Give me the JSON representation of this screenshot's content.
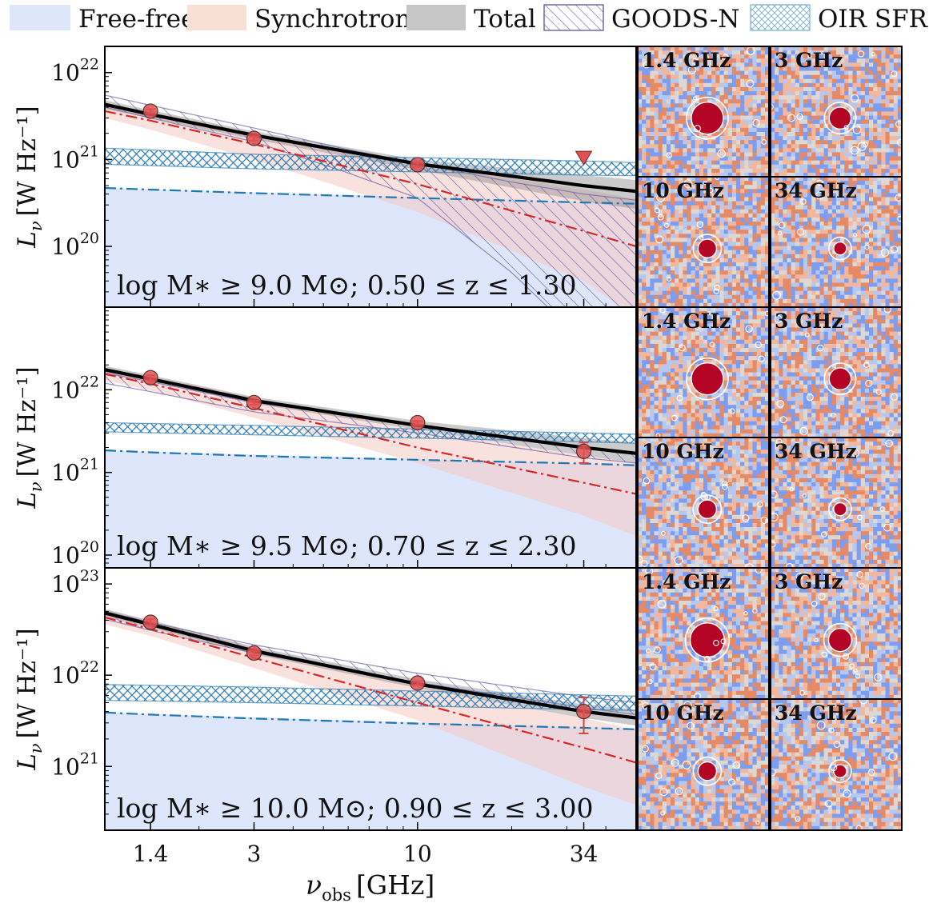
{
  "legend": {
    "items": [
      {
        "label": "Free-free",
        "style": "fill",
        "color": "#dde6fa"
      },
      {
        "label": "Synchrotron",
        "style": "fill",
        "color": "#f9e0d6"
      },
      {
        "label": "Total",
        "style": "fill",
        "color": "#c6c6c6"
      },
      {
        "label": "GOODS-N",
        "style": "hatch-diag",
        "color": "#6b5fa6"
      },
      {
        "label": "OIR SFR",
        "style": "hatch-cross",
        "color": "#8cb8d6"
      }
    ]
  },
  "colors": {
    "free_free_fill": "#dde6fa",
    "synchrotron_fill": "#f4c9c3",
    "total_fill": "#8c8c8c",
    "total_line": "#000000",
    "free_free_line": "#1f77b4",
    "synchrotron_line": "#d62728",
    "goods_n_hatch": "#6b5fa6",
    "oir_hatch": "#2f7fb6",
    "data_point": "#e05252",
    "map_low": "#4a6fe0",
    "map_mid": "#dcdcdc",
    "map_high": "#e2734a",
    "map_source": "#b40426"
  },
  "xaxis": {
    "label": "ν_obs [GHz]",
    "label_main": "ν",
    "label_sub": "obs",
    "label_unit": "[GHz]",
    "scale": "log",
    "xlim": [
      1.0,
      50.0
    ],
    "ticks": [
      1.4,
      3,
      10,
      34
    ],
    "tick_labels": [
      "1.4",
      "3",
      "10",
      "34"
    ]
  },
  "ylabel": "L_ν [W Hz⁻¹]",
  "ylabel_main": "L",
  "ylabel_sub": "ν",
  "ylabel_unit": "[W Hz⁻¹]",
  "chart_data": [
    {
      "type": "line",
      "panel": 1,
      "annotation": "log M∗ ≥ 9.0 M⊙;  0.50 ≤ z ≤ 1.30",
      "yscale": "log",
      "ylim": [
        2e+19,
        2e+22
      ],
      "ytick_labels": [
        "10^22",
        "10^21",
        "10^20"
      ],
      "yticks": [
        1e+22,
        1e+21,
        1e+20
      ],
      "grid": false,
      "series": [
        {
          "name": "Total",
          "style": "solid",
          "x": [
            1,
            1.4,
            3,
            10,
            34,
            50
          ],
          "y": [
            4.3e+21,
            3.3e+21,
            1.9e+21,
            8.9e+20,
            5e+20,
            4.3e+20
          ]
        },
        {
          "name": "Free-free",
          "style": "dashdot",
          "x": [
            1,
            1.4,
            3,
            10,
            34,
            50
          ],
          "y": [
            4.7e+20,
            4.5e+20,
            4.1e+20,
            3.6e+20,
            3.2e+20,
            3.1e+20
          ]
        },
        {
          "name": "Synchrotron",
          "style": "dashdot",
          "x": [
            1,
            1.4,
            3,
            10,
            34,
            50
          ],
          "y": [
            3.6e+21,
            2.8e+21,
            1.5e+21,
            5.2e+20,
            1.5e+20,
            1e+20
          ]
        }
      ],
      "bands": [
        {
          "name": "Free-free",
          "x": [
            1,
            50
          ],
          "ylow": [
            10000000000.0,
            10000000000.0
          ],
          "yhigh": [
            4.7e+20,
            3.1e+20
          ]
        },
        {
          "name": "Synchrotron",
          "x": [
            1,
            1.4,
            3,
            10,
            34,
            50
          ],
          "ylow": [
            3e+21,
            2.2e+21,
            1e+21,
            2.5e+20,
            4e+19,
            1.5e+19
          ],
          "yhigh": [
            4.5e+21,
            3.5e+21,
            2e+21,
            9e+20,
            4.5e+20,
            3.5e+20
          ]
        },
        {
          "name": "Total",
          "x": [
            1,
            1.4,
            3,
            10,
            34,
            50
          ],
          "ylow": [
            3.8e+21,
            3e+21,
            1.7e+21,
            7.6e+20,
            3.3e+20,
            2.7e+20
          ],
          "yhigh": [
            4.8e+21,
            3.7e+21,
            2.1e+21,
            1e+21,
            6.6e+20,
            5.8e+20
          ]
        }
      ],
      "hatched": [
        {
          "name": "GOODS-N",
          "x": [
            1,
            1.4,
            3,
            6,
            10,
            20,
            34,
            50
          ],
          "ylow": [
            4e+21,
            3e+21,
            1.6e+21,
            7e+20,
            3.6e+20,
            5e+19,
            8e+18,
            5e+18
          ],
          "yhigh": [
            5.5e+21,
            4.2e+21,
            2.3e+21,
            1.3e+21,
            9e+20,
            5.5e+20,
            4e+20,
            3.4e+20
          ]
        },
        {
          "name": "OIR SFR",
          "x": [
            1,
            3,
            10,
            34,
            50
          ],
          "ylow": [
            8.8e+20,
            7.8e+20,
            7.2e+20,
            6.6e+20,
            6.5e+20
          ],
          "yhigh": [
            1.35e+21,
            1.15e+21,
            1.05e+21,
            9.6e+20,
            9.2e+20
          ]
        }
      ],
      "points": [
        {
          "x": 1.4,
          "y": 3.6e+21,
          "err_low": 3.4e+21,
          "err_high": 3.8e+21,
          "upper_limit": false
        },
        {
          "x": 3,
          "y": 1.75e+21,
          "err_low": 1.65e+21,
          "err_high": 1.85e+21,
          "upper_limit": false
        },
        {
          "x": 10,
          "y": 8.7e+20,
          "err_low": 8.2e+20,
          "err_high": 9.2e+20,
          "upper_limit": false
        },
        {
          "x": 34,
          "y": 1.05e+21,
          "upper_limit": true
        }
      ],
      "cutouts": [
        "1.4 GHz",
        "3 GHz",
        "10 GHz",
        "34 GHz"
      ]
    },
    {
      "type": "line",
      "panel": 2,
      "annotation": "log M∗ ≥ 9.5 M⊙;  0.70 ≤ z ≤ 2.30",
      "yscale": "log",
      "ylim": [
        7e+19,
        1e+23
      ],
      "ytick_labels": [
        "10^22",
        "10^21",
        "10^20"
      ],
      "yticks": [
        1e+22,
        1e+21,
        1e+20
      ],
      "grid": false,
      "series": [
        {
          "name": "Total",
          "style": "solid",
          "x": [
            1,
            1.4,
            3,
            10,
            34,
            50
          ],
          "y": [
            1.75e+22,
            1.35e+22,
            7.4e+21,
            3.7e+21,
            2e+21,
            1.7e+21
          ]
        },
        {
          "name": "Free-free",
          "style": "dashdot",
          "x": [
            1,
            1.4,
            3,
            10,
            34,
            50
          ],
          "y": [
            1.85e+21,
            1.75e+21,
            1.58e+21,
            1.42e+21,
            1.28e+21,
            1.22e+21
          ]
        },
        {
          "name": "Synchrotron",
          "style": "dashdot",
          "x": [
            1,
            1.4,
            3,
            10,
            34,
            50
          ],
          "y": [
            1.55e+22,
            1.18e+22,
            6e+21,
            2e+21,
            7.5e+20,
            5.5e+20
          ]
        }
      ],
      "bands": [
        {
          "name": "Free-free",
          "x": [
            1,
            50
          ],
          "ylow": [
            10000000000.0,
            10000000000.0
          ],
          "yhigh": [
            1.85e+21,
            1.22e+21
          ]
        },
        {
          "name": "Synchrotron",
          "x": [
            1,
            1.4,
            3,
            10,
            34,
            50
          ],
          "ylow": [
            1.3e+22,
            9.8e+21,
            4.6e+21,
            1.3e+21,
            3e+20,
            1.7e+20
          ],
          "yhigh": [
            1.85e+22,
            1.45e+22,
            8e+21,
            3.3e+21,
            1.6e+21,
            1.3e+21
          ]
        },
        {
          "name": "Total",
          "x": [
            1,
            1.4,
            3,
            10,
            34,
            50
          ],
          "ylow": [
            1.6e+22,
            1.25e+22,
            6.8e+21,
            3.3e+21,
            1.6e+21,
            1.3e+21
          ],
          "yhigh": [
            1.95e+22,
            1.5e+22,
            8.2e+21,
            4.2e+21,
            2.6e+21,
            2.3e+21
          ]
        }
      ],
      "hatched": [
        {
          "name": "GOODS-N",
          "x": [
            1,
            1.4,
            3,
            10,
            34,
            50
          ],
          "ylow": [
            1.2e+22,
            9.5e+21,
            5.4e+21,
            3e+21,
            1.5e+21,
            1.3e+21
          ],
          "yhigh": [
            1.6e+22,
            1.25e+22,
            7e+21,
            3.8e+21,
            2e+21,
            1.7e+21
          ]
        },
        {
          "name": "OIR SFR",
          "x": [
            1,
            3,
            10,
            34,
            50
          ],
          "ylow": [
            3.1e+21,
            2.85e+21,
            2.6e+21,
            2.35e+21,
            2.25e+21
          ],
          "yhigh": [
            4e+21,
            3.7e+21,
            3.35e+21,
            3e+21,
            2.9e+21
          ]
        }
      ],
      "points": [
        {
          "x": 1.4,
          "y": 1.4e+22,
          "err_low": 1.3e+22,
          "err_high": 1.5e+22,
          "upper_limit": false
        },
        {
          "x": 3,
          "y": 7e+21,
          "err_low": 6.6e+21,
          "err_high": 7.4e+21,
          "upper_limit": false
        },
        {
          "x": 10,
          "y": 4e+21,
          "err_low": 3.8e+21,
          "err_high": 4.2e+21,
          "upper_limit": false
        },
        {
          "x": 34,
          "y": 1.8e+21,
          "err_low": 1.3e+21,
          "err_high": 2.3e+21,
          "upper_limit": false
        }
      ],
      "cutouts": [
        "1.4 GHz",
        "3 GHz",
        "10 GHz",
        "34 GHz"
      ]
    },
    {
      "type": "line",
      "panel": 3,
      "annotation": "log M∗ ≥ 10.0 M⊙;  0.90 ≤ z ≤ 3.00",
      "yscale": "log",
      "ylim": [
        2e+20,
        1.5e+23
      ],
      "ytick_labels": [
        "10^23",
        "10^22",
        "10^21"
      ],
      "yticks": [
        1e+23,
        1e+22,
        1e+21
      ],
      "grid": false,
      "series": [
        {
          "name": "Total",
          "style": "solid",
          "x": [
            1,
            1.4,
            3,
            10,
            34,
            50
          ],
          "y": [
            4.8e+22,
            3.6e+22,
            1.85e+22,
            8e+21,
            4e+21,
            3.4e+21
          ]
        },
        {
          "name": "Free-free",
          "style": "dashdot",
          "x": [
            1,
            1.4,
            3,
            10,
            34,
            50
          ],
          "y": [
            3.9e+21,
            3.7e+21,
            3.35e+21,
            2.95e+21,
            2.65e+21,
            2.55e+21
          ]
        },
        {
          "name": "Synchrotron",
          "style": "dashdot",
          "x": [
            1,
            1.4,
            3,
            10,
            34,
            50
          ],
          "y": [
            4.3e+22,
            3.2e+22,
            1.55e+22,
            5e+21,
            1.6e+21,
            1.1e+21
          ]
        }
      ],
      "bands": [
        {
          "name": "Free-free",
          "x": [
            1,
            50
          ],
          "ylow": [
            10000000000.0,
            10000000000.0
          ],
          "yhigh": [
            3.9e+21,
            2.55e+21
          ]
        },
        {
          "name": "Synchrotron",
          "x": [
            1,
            1.4,
            3,
            10,
            34,
            50
          ],
          "ylow": [
            3.6e+22,
            2.7e+22,
            1.2e+22,
            3.2e+21,
            6e+20,
            3.8e+20
          ],
          "yhigh": [
            5.2e+22,
            3.9e+22,
            2e+22,
            7.5e+21,
            3.4e+21,
            2.5e+21
          ]
        },
        {
          "name": "Total",
          "x": [
            1,
            1.4,
            3,
            10,
            34,
            50
          ],
          "ylow": [
            4.4e+22,
            3.3e+22,
            1.7e+22,
            7.2e+21,
            3.4e+21,
            2.8e+21
          ],
          "yhigh": [
            5.3e+22,
            4e+22,
            2.05e+22,
            9e+21,
            4.8e+21,
            4.2e+21
          ]
        }
      ],
      "hatched": [
        {
          "name": "GOODS-N",
          "x": [
            1,
            1.4,
            3,
            10,
            34,
            50
          ],
          "ylow": [
            4.1e+22,
            3.1e+22,
            1.75e+22,
            8.3e+21,
            4.4e+21,
            3.7e+21
          ],
          "yhigh": [
            5e+22,
            3.8e+22,
            2.15e+22,
            1.05e+22,
            5.8e+21,
            5e+21
          ]
        },
        {
          "name": "OIR SFR",
          "x": [
            1,
            3,
            10,
            34,
            50
          ],
          "ylow": [
            5.3e+21,
            5e+21,
            4.6e+21,
            4.2e+21,
            4.1e+21
          ],
          "yhigh": [
            7.9e+21,
            7.4e+21,
            6.7e+21,
            6.1e+21,
            5.9e+21
          ]
        }
      ],
      "points": [
        {
          "x": 1.4,
          "y": 3.8e+22,
          "err_low": 3.5e+22,
          "err_high": 4.1e+22,
          "upper_limit": false
        },
        {
          "x": 3,
          "y": 1.75e+22,
          "err_low": 1.65e+22,
          "err_high": 1.85e+22,
          "upper_limit": false
        },
        {
          "x": 10,
          "y": 8.2e+21,
          "err_low": 7.8e+21,
          "err_high": 8.6e+21,
          "upper_limit": false
        },
        {
          "x": 34,
          "y": 4e+21,
          "err_low": 2.3e+21,
          "err_high": 5.7e+21,
          "upper_limit": false
        }
      ],
      "cutouts": [
        "1.4 GHz",
        "3 GHz",
        "10 GHz",
        "34 GHz"
      ]
    }
  ]
}
